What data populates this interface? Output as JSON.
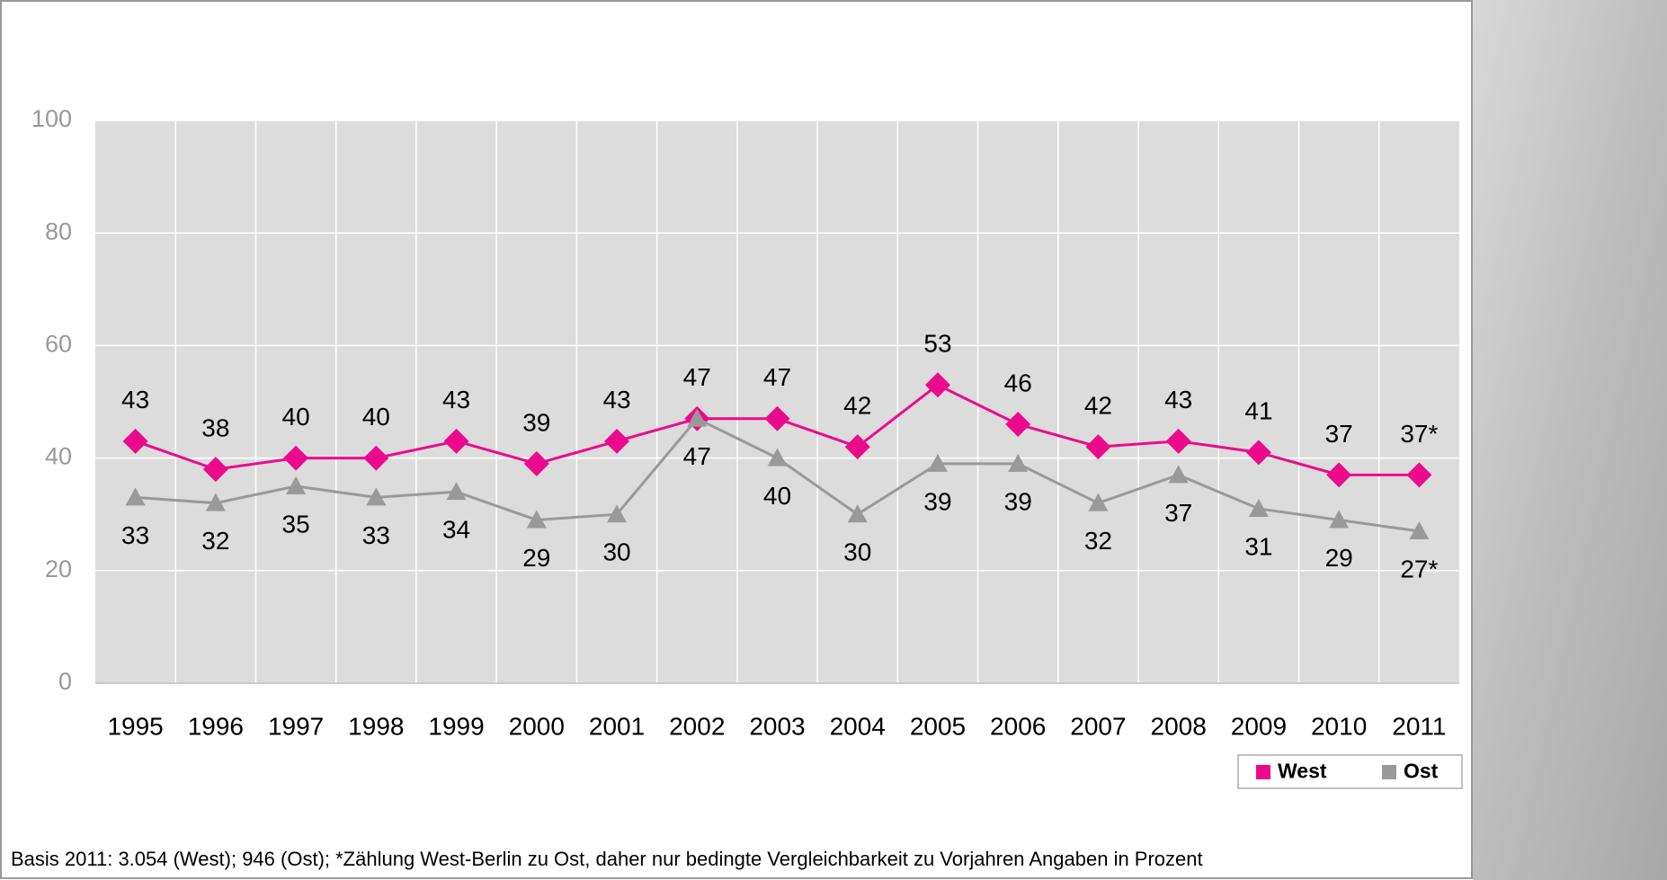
{
  "chart_data": {
    "type": "line",
    "categories": [
      "1995",
      "1996",
      "1997",
      "1998",
      "1999",
      "2000",
      "2001",
      "2002",
      "2003",
      "2004",
      "2005",
      "2006",
      "2007",
      "2008",
      "2009",
      "2010",
      "2011"
    ],
    "series": [
      {
        "name": "West",
        "color": "#ec0a8c",
        "marker": "diamond",
        "values": [
          43,
          38,
          40,
          40,
          43,
          39,
          43,
          47,
          47,
          42,
          53,
          46,
          42,
          43,
          41,
          37,
          37
        ],
        "value_labels": [
          "43",
          "38",
          "40",
          "40",
          "43",
          "39",
          "43",
          "47",
          "47",
          "42",
          "53",
          "46",
          "42",
          "43",
          "41",
          "37",
          "37*"
        ]
      },
      {
        "name": "Ost",
        "color": "#999999",
        "marker": "triangle",
        "values": [
          33,
          32,
          35,
          33,
          34,
          29,
          30,
          47,
          40,
          30,
          39,
          39,
          32,
          37,
          31,
          29,
          27
        ],
        "value_labels": [
          "33",
          "32",
          "35",
          "33",
          "34",
          "29",
          "30",
          "47",
          "40",
          "30",
          "39",
          "39",
          "32",
          "37",
          "31",
          "29",
          "27*"
        ]
      }
    ],
    "ylim": [
      0,
      100
    ],
    "yticks": [
      0,
      20,
      40,
      60,
      80,
      100
    ],
    "grid": true,
    "legend": "bottom-right",
    "footnote": "Basis 2011: 3.054 (West); 946 (Ost); *Zählung West-Berlin zu Ost, daher nur bedingte Vergleichbarkeit zu Vorjahren  Angaben in Prozent"
  }
}
